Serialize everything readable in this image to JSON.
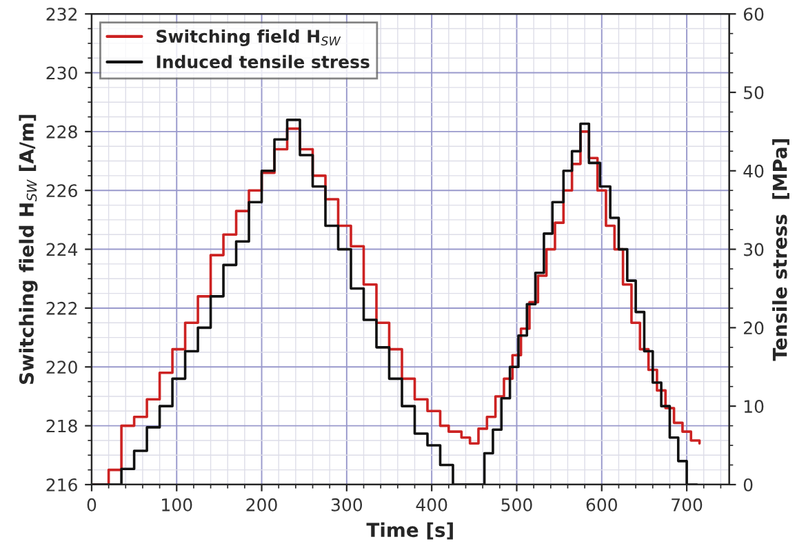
{
  "chart_data": {
    "type": "step",
    "xlabel": "Time [s]",
    "ylabel": "Switching field H$_{SW}$ [A/m]",
    "y2label": "Tensile stress  [MPa]",
    "xlim": [
      0,
      750
    ],
    "xticks": [
      0,
      100,
      200,
      300,
      400,
      500,
      600,
      700
    ],
    "ylim": [
      216,
      232
    ],
    "yticks": [
      216,
      218,
      220,
      222,
      224,
      226,
      228,
      230,
      232
    ],
    "y2lim": [
      0,
      60
    ],
    "y2ticks": [
      0,
      10,
      20,
      30,
      40,
      50,
      60
    ],
    "grid": true,
    "legend": "top left",
    "line_style": "solid",
    "series": [
      {
        "name": "Switching field H$_{SW}$",
        "color": "#cc2222",
        "x": [
          0,
          20,
          35,
          50,
          65,
          80,
          95,
          110,
          125,
          140,
          155,
          170,
          185,
          200,
          215,
          230,
          245,
          260,
          275,
          290,
          305,
          320,
          335,
          350,
          365,
          380,
          395,
          410,
          420,
          435,
          445,
          455,
          465,
          475,
          485,
          495,
          505,
          515,
          525,
          535,
          545,
          555,
          565,
          575,
          585,
          595,
          605,
          615,
          625,
          635,
          645,
          655,
          665,
          675,
          685,
          695,
          705,
          715
        ],
        "values": [
          216.0,
          216.5,
          218.0,
          218.3,
          218.9,
          219.8,
          220.6,
          221.5,
          222.4,
          223.8,
          224.5,
          225.3,
          226.0,
          226.6,
          227.4,
          228.1,
          227.4,
          226.5,
          225.7,
          224.8,
          224.1,
          222.8,
          221.5,
          220.6,
          219.6,
          218.9,
          218.5,
          218.0,
          217.8,
          217.6,
          217.4,
          217.9,
          218.3,
          219.0,
          219.6,
          220.4,
          221.3,
          222.2,
          223.1,
          224.0,
          224.9,
          226.0,
          226.9,
          228.0,
          227.1,
          226.0,
          224.8,
          224.0,
          222.8,
          221.5,
          220.6,
          219.9,
          219.2,
          218.6,
          218.1,
          217.8,
          217.5,
          217.4
        ]
      },
      {
        "name": "Induced tensile stress",
        "color": "#111111",
        "axis": "y2",
        "x": [
          0,
          35,
          50,
          65,
          80,
          95,
          110,
          125,
          140,
          155,
          170,
          185,
          200,
          215,
          230,
          245,
          260,
          275,
          290,
          305,
          320,
          335,
          350,
          365,
          380,
          395,
          410,
          425,
          455,
          462,
          472,
          482,
          492,
          502,
          512,
          522,
          532,
          542,
          555,
          565,
          575,
          585,
          598,
          610,
          620,
          630,
          640,
          650,
          660,
          670,
          680,
          690,
          700,
          712
        ],
        "values": [
          0,
          2,
          4.3,
          7.3,
          10,
          13.5,
          17,
          20,
          24,
          28,
          31,
          36,
          40,
          44,
          46.5,
          42,
          38,
          33,
          30,
          25,
          21,
          17.5,
          13.5,
          10,
          6.5,
          5,
          2.5,
          0,
          0,
          4,
          7,
          11,
          15,
          19,
          23,
          27,
          32,
          36,
          40,
          42.5,
          46,
          41,
          38,
          34,
          30,
          26,
          22,
          17,
          13,
          10,
          6,
          3,
          0,
          0
        ]
      }
    ]
  }
}
